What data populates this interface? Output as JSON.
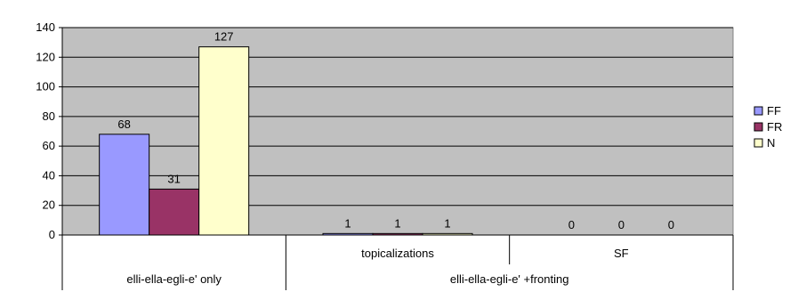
{
  "chart_data": {
    "type": "bar",
    "categories": [
      "elli-ella-egli-e' only",
      "topicalizations",
      "SF"
    ],
    "group_labels": [
      "",
      "elli-ella-egli-e' +fronting",
      "elli-ella-egli-e' +fronting"
    ],
    "series": [
      {
        "name": "FF",
        "values": [
          68,
          1,
          0
        ],
        "color": "#9999ff"
      },
      {
        "name": "FR",
        "values": [
          31,
          1,
          0
        ],
        "color": "#993366"
      },
      {
        "name": "N",
        "values": [
          127,
          1,
          0
        ],
        "color": "#ffffcc"
      }
    ],
    "ylim": [
      0,
      140
    ],
    "yticks": [
      0,
      20,
      40,
      60,
      80,
      100,
      120,
      140
    ],
    "grid": true,
    "legend_position": "right",
    "plot_background": "#c0c0c0"
  }
}
